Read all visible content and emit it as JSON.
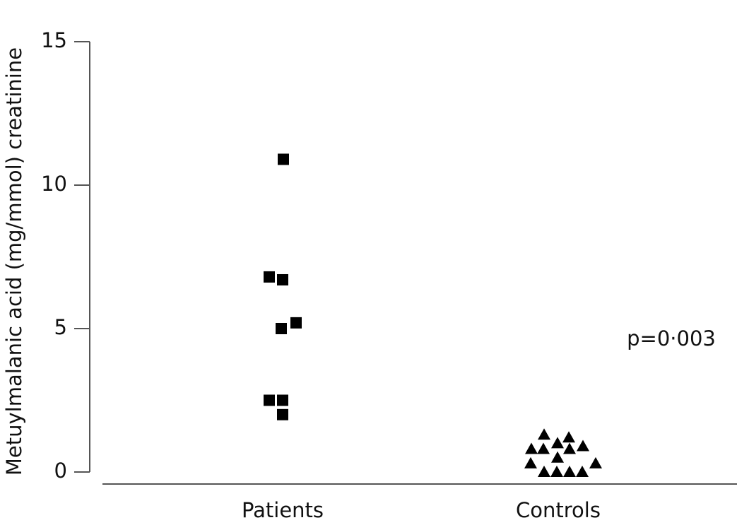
{
  "chart_data": {
    "type": "strip",
    "y_label": "Metuylmalanic acid (mg/mmol) creatinine",
    "annotation": "p=0·003",
    "categories": [
      "Patients",
      "Controls"
    ],
    "values": [
      [
        10.9,
        6.8,
        6.7,
        5.2,
        5.0,
        2.5,
        2.5,
        2.0
      ],
      [
        1.3,
        1.2,
        1.0,
        0.9,
        0.8,
        0.8,
        0.8,
        0.3,
        0.3,
        0.5,
        0,
        0,
        0,
        0
      ]
    ],
    "markers": [
      "square",
      "triangle"
    ],
    "color": "#000000",
    "ylim": [
      0,
      15
    ],
    "yticks": [
      0,
      5,
      10,
      15
    ]
  }
}
